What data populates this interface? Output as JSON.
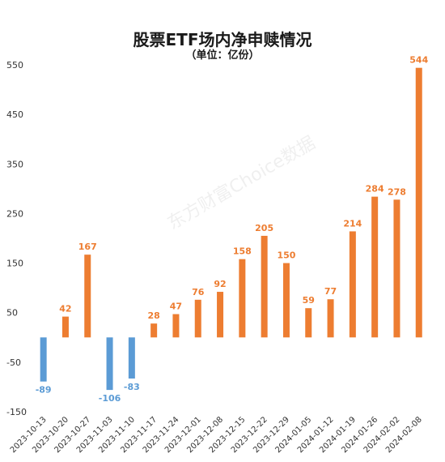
{
  "chart_data": {
    "type": "bar",
    "title": "股票ETF场内净申赎情况",
    "subtitle": "（单位：亿份）",
    "watermark": "东方财富Choice数据",
    "xlabel": "",
    "ylabel": "",
    "ylim": [
      -150,
      550
    ],
    "yticks": [
      550,
      450,
      350,
      250,
      150,
      50,
      -50,
      -150
    ],
    "grid": false,
    "legend": "none",
    "categories": [
      "2023-10-13",
      "2023-10-20",
      "2023-10-27",
      "2023-11-03",
      "2023-11-10",
      "2023-11-17",
      "2023-11-24",
      "2023-12-01",
      "2023-12-08",
      "2023-12-15",
      "2023-12-22",
      "2023-12-29",
      "2024-01-05",
      "2024-01-12",
      "2024-01-19",
      "2024-01-26",
      "2024-02-02",
      "2024-02-08"
    ],
    "values": [
      -89,
      42,
      167,
      -106,
      -83,
      28,
      47,
      76,
      92,
      158,
      205,
      150,
      59,
      77,
      214,
      284,
      278,
      544
    ],
    "colors": {
      "positive": "#ED7D31",
      "negative": "#5B9BD5",
      "axis_text": "#333333"
    }
  }
}
